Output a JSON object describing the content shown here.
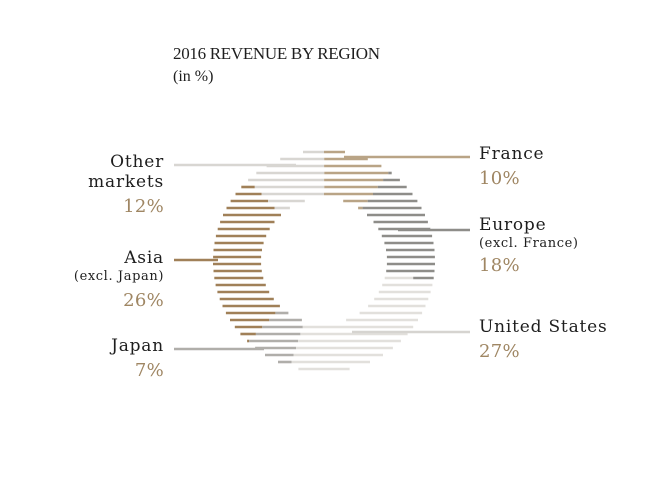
{
  "title": "2016 REVENUE BY REGION",
  "subtitle": "(in %)",
  "chart_data": {
    "type": "pie",
    "title": "2016 REVENUE BY REGION",
    "subtitle": "(in %)",
    "slices": [
      {
        "label": "France",
        "value": 10,
        "color": "#b9a486"
      },
      {
        "label": "Europe",
        "sublabel": "(excl. France)",
        "value": 18,
        "color": "#8e8d89"
      },
      {
        "label": "United States",
        "value": 27,
        "color": "#e2e0dc"
      },
      {
        "label": "Japan",
        "value": 7,
        "color": "#b0aeaa"
      },
      {
        "label": "Asia",
        "sublabel": "(excl. Japan)",
        "value": 26,
        "color": "#a08058"
      },
      {
        "label": "Other markets",
        "value": 12,
        "color": "#d8d6d2"
      }
    ]
  },
  "labels": {
    "france": {
      "name": "France",
      "pct": "10%"
    },
    "europe": {
      "name": "Europe",
      "sub": "(excl. France)",
      "pct": "18%"
    },
    "us": {
      "name": "United States",
      "pct": "27%"
    },
    "japan": {
      "name": "Japan",
      "pct": "7%"
    },
    "asia": {
      "name": "Asia",
      "sub": "(excl. Japan)",
      "pct": "26%"
    },
    "other": {
      "name1": "Other",
      "name2": "markets",
      "pct": "12%"
    }
  }
}
